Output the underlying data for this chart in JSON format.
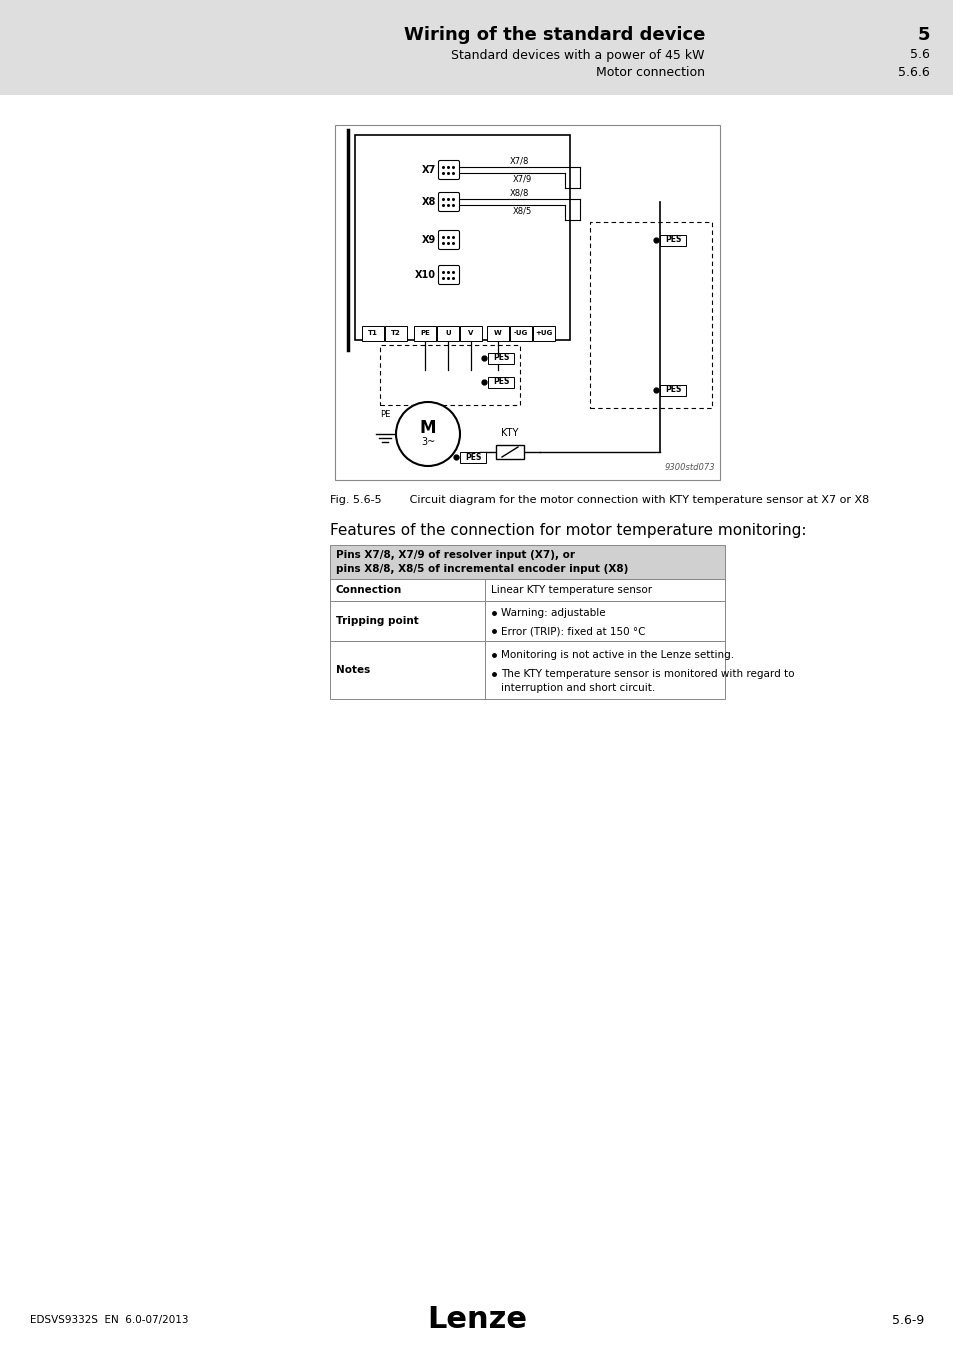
{
  "title_main": "Wiring of the standard device",
  "title_num": "5",
  "subtitle1": "Standard devices with a power of 45 kW",
  "subtitle1_num": "5.6",
  "subtitle2": "Motor connection",
  "subtitle2_num": "5.6.6",
  "footer_left": "EDSVS9332S  EN  6.0-07/2013",
  "footer_center": "Lenze",
  "footer_right": "5.6-9",
  "fig_ref": "9300std073",
  "fig_caption": "Fig. 5.6-5        Circuit diagram for the motor connection with KTY temperature sensor at X7 or X8",
  "features_title": "Features of the connection for motor temperature monitoring:",
  "table_header": "Pins X7/8, X7/9 of resolver input (X7), or\npins X8/8, X8/5 of incremental encoder input (X8)",
  "row1_label": "Connection",
  "row1_val": "Linear KTY temperature sensor",
  "row2_label": "Tripping point",
  "row2_bullets": [
    "Warning: adjustable",
    "Error (TRIP): fixed at 150 °C"
  ],
  "row3_label": "Notes",
  "row3_bullets": [
    "Monitoring is not active in the Lenze setting.",
    "The KTY temperature sensor is monitored with regard to\ninterruption and short circuit."
  ],
  "bg_color": "#dedede",
  "page_bg": "#ffffff"
}
